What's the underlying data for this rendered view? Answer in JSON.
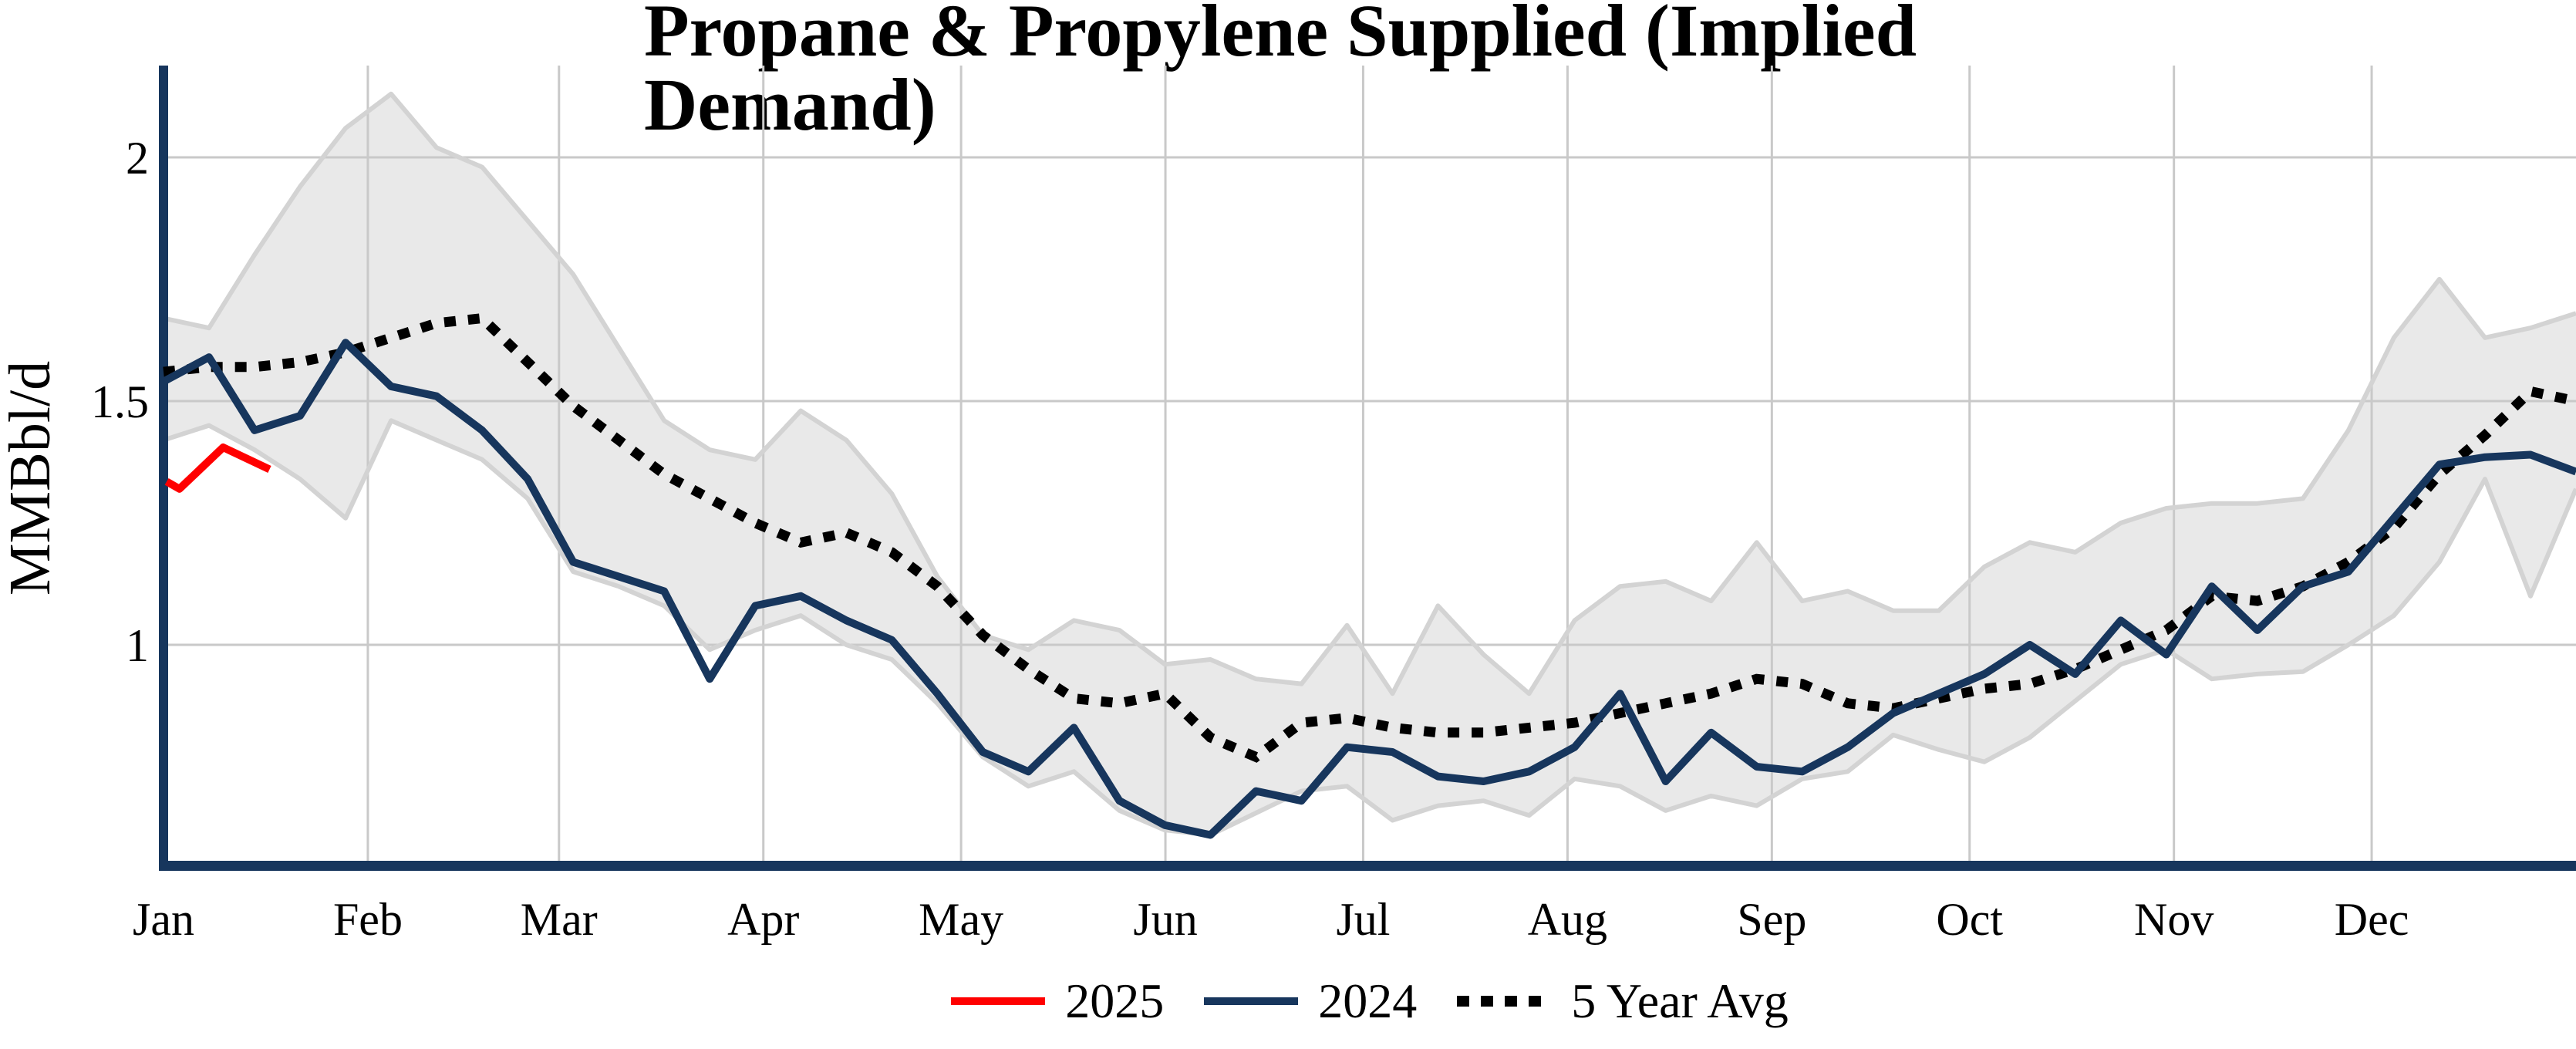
{
  "title": "Propane & Propylene Supplied (Implied Demand)",
  "y_axis": {
    "label": "MMBbl/d",
    "tick_labels": [
      "2",
      "1.5",
      "1"
    ],
    "tick_values": [
      2,
      1.5,
      1
    ]
  },
  "x_axis": {
    "months": [
      "Jan",
      "Feb",
      "Mar",
      "Apr",
      "May",
      "Jun",
      "Jul",
      "Aug",
      "Sep",
      "Oct",
      "Nov",
      "Dec"
    ]
  },
  "legend": [
    {
      "label": "2025",
      "color": "#FF0000",
      "style": "solid"
    },
    {
      "label": "2024",
      "color": "#17365D",
      "style": "solid"
    },
    {
      "label": "5 Year Avg",
      "color": "#000000",
      "style": "dotted"
    }
  ],
  "colors": {
    "axis": "#17365D",
    "gridline": "#C9C9C9",
    "band_fill": "#E9E9E9",
    "band_edge": "#D3D3D3",
    "series_2024": "#17365D",
    "series_2025": "#FF0000",
    "series_avg": "#000000",
    "background": "#FFFFFF",
    "text": "#000000"
  },
  "chart_data": {
    "type": "line",
    "title": "Propane & Propylene Supplied (Implied Demand)",
    "xlabel": "",
    "ylabel": "MMBbl/d",
    "x_mode": "weeks_of_year",
    "weeks_span": 53,
    "month_start_days": [
      0,
      31,
      60,
      91,
      121,
      152,
      182,
      213,
      244,
      274,
      305,
      335
    ],
    "days_in_year": 366,
    "ylim": [
      0.56,
      2.19
    ],
    "y_gridlines": [
      2,
      1.5,
      1
    ],
    "grid": true,
    "legend_position": "bottom-center",
    "series": [
      {
        "name": "2025",
        "kind": "line",
        "color": "#FF0000",
        "weeks": [
          0.07,
          0.35,
          1.31,
          2.33
        ],
        "values": [
          1.335,
          1.32,
          1.405,
          1.36
        ]
      },
      {
        "name": "2024",
        "kind": "line",
        "color": "#17365D",
        "values": [
          1.54,
          1.59,
          1.44,
          1.47,
          1.62,
          1.53,
          1.51,
          1.44,
          1.34,
          1.17,
          1.14,
          1.11,
          0.93,
          1.08,
          1.1,
          1.05,
          1.01,
          0.9,
          0.78,
          0.74,
          0.83,
          0.68,
          0.63,
          0.61,
          0.7,
          0.68,
          0.79,
          0.78,
          0.73,
          0.72,
          0.74,
          0.79,
          0.9,
          0.72,
          0.82,
          0.75,
          0.74,
          0.79,
          0.86,
          0.9,
          0.94,
          1.0,
          0.94,
          1.05,
          0.98,
          1.12,
          1.03,
          1.12,
          1.15,
          1.26,
          1.37,
          1.385,
          1.39,
          1.355
        ]
      },
      {
        "name": "5 Year Avg",
        "kind": "dotted-line",
        "color": "#000000",
        "values": [
          1.56,
          1.57,
          1.57,
          1.58,
          1.6,
          1.63,
          1.66,
          1.67,
          1.58,
          1.49,
          1.42,
          1.35,
          1.3,
          1.25,
          1.21,
          1.23,
          1.19,
          1.12,
          1.02,
          0.95,
          0.89,
          0.88,
          0.9,
          0.81,
          0.77,
          0.84,
          0.85,
          0.83,
          0.82,
          0.82,
          0.83,
          0.84,
          0.86,
          0.88,
          0.9,
          0.93,
          0.92,
          0.88,
          0.87,
          0.89,
          0.91,
          0.92,
          0.95,
          0.99,
          1.03,
          1.1,
          1.09,
          1.12,
          1.17,
          1.24,
          1.35,
          1.43,
          1.52,
          1.5
        ]
      },
      {
        "name": "5 Year Range",
        "kind": "band",
        "fill": "#E9E9E9",
        "edge": "#D3D3D3",
        "upper": [
          1.67,
          1.65,
          1.8,
          1.94,
          2.06,
          2.13,
          2.02,
          1.98,
          1.87,
          1.76,
          1.61,
          1.46,
          1.4,
          1.38,
          1.48,
          1.42,
          1.31,
          1.14,
          1.02,
          0.99,
          1.05,
          1.03,
          0.96,
          0.97,
          0.93,
          0.92,
          1.04,
          0.9,
          1.08,
          0.98,
          0.9,
          1.05,
          1.12,
          1.13,
          1.09,
          1.21,
          1.09,
          1.11,
          1.07,
          1.07,
          1.16,
          1.21,
          1.19,
          1.25,
          1.28,
          1.29,
          1.29,
          1.3,
          1.44,
          1.63,
          1.75,
          1.63,
          1.65,
          1.68
        ],
        "lower": [
          1.42,
          1.45,
          1.4,
          1.34,
          1.26,
          1.46,
          1.42,
          1.38,
          1.3,
          1.15,
          1.12,
          1.08,
          0.99,
          1.03,
          1.06,
          1.0,
          0.97,
          0.88,
          0.77,
          0.71,
          0.74,
          0.66,
          0.62,
          0.61,
          0.655,
          0.7,
          0.71,
          0.64,
          0.67,
          0.68,
          0.65,
          0.725,
          0.71,
          0.66,
          0.69,
          0.67,
          0.725,
          0.74,
          0.815,
          0.785,
          0.76,
          0.81,
          0.885,
          0.96,
          0.99,
          0.93,
          0.94,
          0.945,
          1.0,
          1.06,
          1.17,
          1.34,
          1.1,
          1.32
        ]
      }
    ]
  }
}
